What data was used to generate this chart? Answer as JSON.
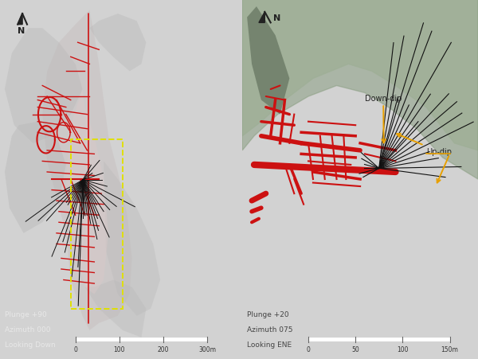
{
  "bg_color": "#d2d2d2",
  "left_text_color": "#e8e8e8",
  "right_text_color": "#444444",
  "red_color": "#cc1111",
  "black_color": "#111111",
  "yellow_color": "#e0e000",
  "gray_shape_color": "#b8b8b8",
  "gray_shape_color2": "#c8c0c0",
  "hill_color1": "#b8c4b0",
  "hill_color2": "#8a9e82",
  "ann_color": "#e8a000",
  "left_labels": [
    "Plunge +90",
    "Azimuth 000",
    "Looking Down"
  ],
  "right_labels": [
    "Plunge +20",
    "Azimuth 075",
    "Looking ENE"
  ]
}
